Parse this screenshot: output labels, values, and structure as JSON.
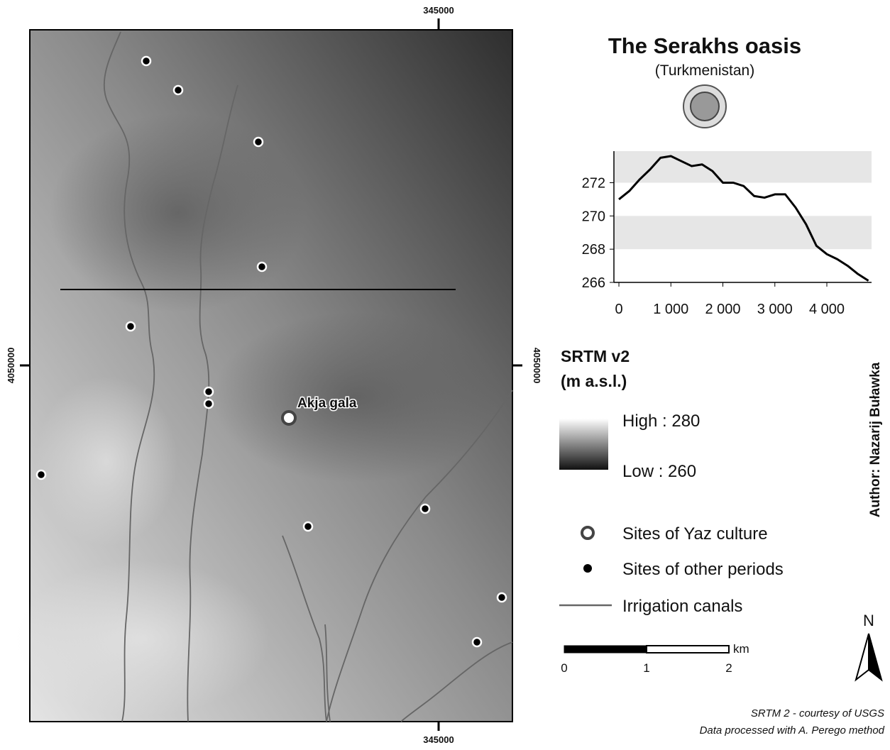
{
  "map": {
    "title": "The Serakhs oasis",
    "subtitle": "(Turkmenistan)",
    "coord_top": "345000",
    "coord_bottom": "345000",
    "coord_left": "4050000",
    "coord_right": "4050000",
    "site_label": "Akja gala",
    "legend_title": [
      "SRTM v2",
      "(m a.s.l.)"
    ],
    "legend_high": "High : 280",
    "legend_low": "Low : 260",
    "legend_items": [
      "Sites of Yaz culture",
      "Sites of other periods",
      "Irrigation canals"
    ],
    "scale_labels": [
      "0",
      "1",
      "2"
    ],
    "scale_unit": "km",
    "north": "N",
    "author": "Author: Nazarij Buławka",
    "credits": [
      "SRTM 2 - courtesy of USGS",
      "Data processed with A. Perego method"
    ]
  },
  "chart_data": {
    "type": "line",
    "color": "#000000",
    "x": [
      0,
      200,
      400,
      600,
      800,
      1000,
      1200,
      1400,
      1600,
      1800,
      2000,
      2200,
      2400,
      2600,
      2800,
      3000,
      3200,
      3400,
      3600,
      3800,
      4000,
      4200,
      4400,
      4600,
      4800
    ],
    "values": [
      271.0,
      271.5,
      272.2,
      272.8,
      273.5,
      273.6,
      273.3,
      273.0,
      273.1,
      272.7,
      272.0,
      272.0,
      271.8,
      271.2,
      271.1,
      271.3,
      271.3,
      270.5,
      269.5,
      268.2,
      267.7,
      267.4,
      267.0,
      266.5,
      266.1
    ],
    "xlim": [
      -96,
      4860
    ],
    "ylim": [
      266,
      273.9
    ],
    "xticks": [
      0,
      {
        "value": 1000,
        "label": "1 000"
      },
      {
        "value": 2000,
        "label": "2 000"
      },
      {
        "value": 3000,
        "label": "3 000"
      },
      {
        "value": 4000,
        "label": "4 000"
      }
    ],
    "yticks": [
      266,
      268,
      270,
      272
    ],
    "bands": true
  }
}
